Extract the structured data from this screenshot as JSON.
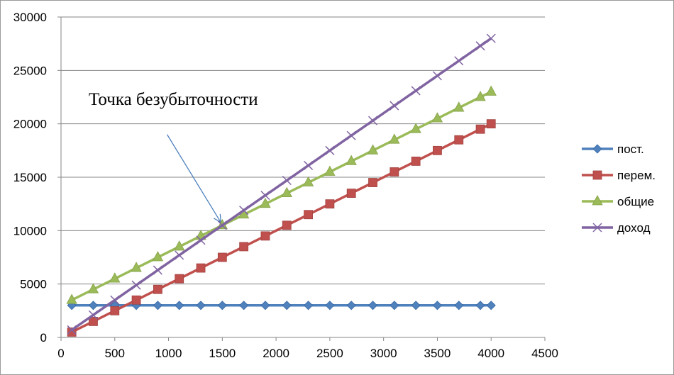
{
  "chart_data": {
    "type": "line",
    "title": "",
    "xlabel": "",
    "ylabel": "",
    "xlim": [
      0,
      4500
    ],
    "ylim": [
      0,
      30000
    ],
    "x_ticks": [
      0,
      500,
      1000,
      1500,
      2000,
      2500,
      3000,
      3500,
      4000,
      4500
    ],
    "y_ticks": [
      0,
      5000,
      10000,
      15000,
      20000,
      25000,
      30000
    ],
    "x_tick_labels": [
      "0",
      "500",
      "1000",
      "1500",
      "2000",
      "2500",
      "3000",
      "3500",
      "4000",
      "4500"
    ],
    "y_tick_labels": [
      "0",
      "5000",
      "10000",
      "15000",
      "20000",
      "25000",
      "30000"
    ],
    "grid": "horizontal",
    "legend_position": "right",
    "x": [
      100,
      300,
      500,
      700,
      900,
      1100,
      1300,
      1500,
      1700,
      1900,
      2100,
      2300,
      2500,
      2700,
      2900,
      3100,
      3300,
      3500,
      3700,
      3900,
      4000
    ],
    "series": [
      {
        "name": "пост.",
        "color": "#4F81BD",
        "marker": "diamond",
        "values": [
          3000,
          3000,
          3000,
          3000,
          3000,
          3000,
          3000,
          3000,
          3000,
          3000,
          3000,
          3000,
          3000,
          3000,
          3000,
          3000,
          3000,
          3000,
          3000,
          3000,
          3000
        ]
      },
      {
        "name": "перем.",
        "color": "#C0504D",
        "marker": "square",
        "values": [
          500,
          1500,
          2500,
          3500,
          4500,
          5500,
          6500,
          7500,
          8500,
          9500,
          10500,
          11500,
          12500,
          13500,
          14500,
          15500,
          16500,
          17500,
          18500,
          19500,
          20000
        ]
      },
      {
        "name": "общие",
        "color": "#9BBB59",
        "marker": "triangle",
        "values": [
          3500,
          4500,
          5500,
          6500,
          7500,
          8500,
          9500,
          10500,
          11500,
          12500,
          13500,
          14500,
          15500,
          16500,
          17500,
          18500,
          19500,
          20500,
          21500,
          22500,
          23000
        ]
      },
      {
        "name": "доход",
        "color": "#8064A2",
        "marker": "x",
        "values": [
          700,
          2100,
          3500,
          4900,
          6300,
          7700,
          9100,
          10500,
          11900,
          13300,
          14700,
          16100,
          17500,
          18900,
          20300,
          21700,
          23100,
          24500,
          25900,
          27300,
          28000
        ]
      }
    ],
    "annotations": [
      {
        "text": "Точка безубыточности",
        "x": 1500,
        "y": 10500
      }
    ]
  }
}
